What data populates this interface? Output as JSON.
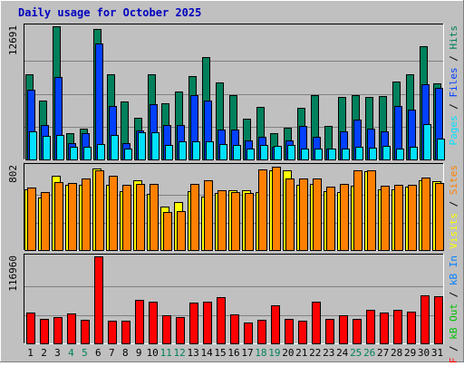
{
  "chart_data": [
    {
      "type": "bar",
      "title": "Daily usage for October 2025",
      "categories": [
        "1",
        "2",
        "3",
        "4",
        "5",
        "6",
        "7",
        "8",
        "9",
        "10",
        "11",
        "12",
        "13",
        "14",
        "15",
        "16",
        "17",
        "18",
        "19",
        "20",
        "21",
        "22",
        "23",
        "24",
        "25",
        "26",
        "27",
        "28",
        "29",
        "30",
        "31"
      ],
      "weekend_categories": [
        "4",
        "5",
        "11",
        "12",
        "18",
        "19",
        "25",
        "26"
      ],
      "ymax_label": "12691",
      "ymax": 12691,
      "right_label": [
        "Pages",
        " / ",
        "Files",
        " / ",
        "Hits"
      ],
      "series": [
        {
          "name": "Hits",
          "color": "#00805c",
          "values": [
            8155,
            5588,
            12691,
            2484,
            2948,
            12445,
            8155,
            5495,
            3932,
            8124,
            5323,
            6448,
            7974,
            9720,
            7322,
            6105,
            3870,
            5006,
            2546,
            3010,
            4935,
            6135,
            3219,
            5930,
            6168,
            5926,
            6060,
            7387,
            8155,
            10828,
            7209
          ]
        },
        {
          "name": "Files",
          "color": "#0040ff",
          "values": [
            6662,
            3302,
            7860,
            1583,
            2498,
            11059,
            5059,
            1569,
            2773,
            5300,
            3249,
            3260,
            6110,
            5613,
            2849,
            2849,
            1800,
            2138,
            1197,
            1856,
            3233,
            2121,
            1040,
            2692,
            3776,
            2908,
            2692,
            5113,
            4751,
            7130,
            6787
          ]
        },
        {
          "name": "Pages",
          "color": "#00e0ff",
          "values": [
            2708,
            2230,
            2313,
            1237,
            1189,
            1487,
            2291,
            1040,
            2587,
            2587,
            1397,
            1697,
            1697,
            1697,
            1487,
            1397,
            997,
            1348,
            1271,
            1348,
            997,
            997,
            1019,
            997,
            1240,
            1140,
            1271,
            997,
            1240,
            3345,
            2012
          ]
        }
      ]
    },
    {
      "type": "bar",
      "ymax_label": "802",
      "ymax": 802,
      "right_label": [
        "Visits",
        " / ",
        "Sites"
      ],
      "series": [
        {
          "name": "Visits",
          "color": "#ffff00",
          "values": [
            574,
            500,
            705,
            620,
            622,
            780,
            623,
            562,
            660,
            538,
            415,
            460,
            564,
            505,
            540,
            570,
            565,
            550,
            760,
            760,
            620,
            630,
            557,
            548,
            610,
            747,
            580,
            580,
            600,
            660,
            658
          ]
        },
        {
          "name": "Sites",
          "color": "#ff8000",
          "values": [
            591,
            550,
            650,
            635,
            680,
            760,
            710,
            623,
            630,
            630,
            362,
            375,
            630,
            660,
            568,
            550,
            545,
            770,
            790,
            680,
            685,
            680,
            605,
            630,
            760,
            760,
            610,
            625,
            617,
            690,
            640
          ]
        }
      ]
    },
    {
      "type": "bar",
      "ymax_label": "116960",
      "ymax": 116960,
      "right_label": [
        "kB F",
        " / ",
        "kB Out",
        " / ",
        "kB In"
      ],
      "series": [
        {
          "name": "kB F",
          "color": "#ff0000",
          "values": [
            41000,
            33000,
            35000,
            40000,
            32000,
            116960,
            31000,
            31000,
            59000,
            56000,
            38000,
            35000,
            55000,
            56000,
            62000,
            39000,
            28000,
            32000,
            51000,
            33000,
            30000,
            56000,
            33000,
            38000,
            33000,
            45000,
            42000,
            45000,
            43000,
            65000,
            63000
          ]
        }
      ]
    }
  ]
}
